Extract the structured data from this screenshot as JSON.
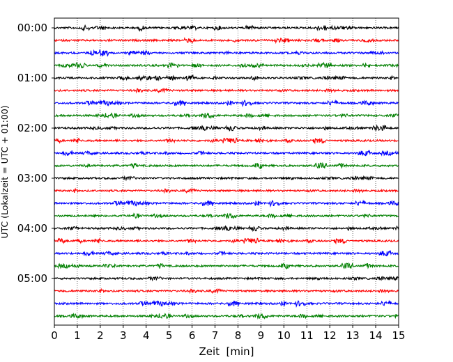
{
  "chart_data": {
    "type": "line",
    "title": "",
    "xlabel": "Zeit  [min]",
    "ylabel": "UTC (Lokalzeit = UTC + 01:00)",
    "xlim": [
      0,
      15
    ],
    "x_ticks": [
      "0",
      "1",
      "2",
      "3",
      "4",
      "5",
      "6",
      "7",
      "8",
      "9",
      "10",
      "11",
      "12",
      "13",
      "14",
      "15"
    ],
    "y_ticks": [
      "00:00",
      "01:00",
      "02:00",
      "03:00",
      "04:00",
      "05:00"
    ],
    "vertical_grid": "dotted",
    "trace_interval_minutes": 15,
    "trace_colors": [
      "#000000",
      "#ff0000",
      "#0000ff",
      "#008000"
    ],
    "trace_start_times": [
      "00:00",
      "00:15",
      "00:30",
      "00:45",
      "01:00",
      "01:15",
      "01:30",
      "01:45",
      "02:00",
      "02:15",
      "02:30",
      "02:45",
      "03:00",
      "03:15",
      "03:30",
      "03:45",
      "04:00",
      "04:15",
      "04:30",
      "04:45",
      "05:00",
      "05:15",
      "05:30",
      "05:45"
    ]
  }
}
